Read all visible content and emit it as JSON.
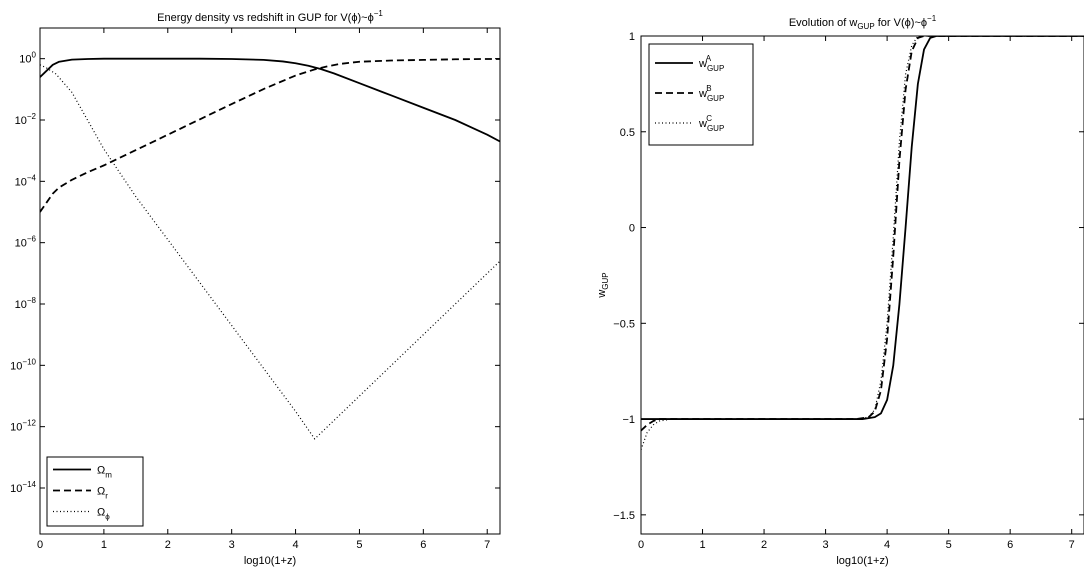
{
  "chart_data": [
    {
      "type": "line",
      "title": "Energy density vs redshift in GUP for V(ϕ)~ϕ",
      "title_exponent": "−1",
      "xlabel": "log10(1+z)",
      "ylabel": "",
      "xlim": [
        0,
        7.2
      ],
      "ylim_log10": [
        -15.5,
        1.0
      ],
      "yscale": "log",
      "grid": false,
      "legend_position": "bottom-left",
      "xticks": [
        0,
        1,
        2,
        3,
        4,
        5,
        6,
        7
      ],
      "yticks_log10": [
        0,
        -2,
        -4,
        -6,
        -8,
        -10,
        -12,
        -14
      ],
      "ytick_base": "10",
      "ytick_exponents": [
        "0",
        "−2",
        "−4",
        "−6",
        "−8",
        "−10",
        "−12",
        "−14"
      ],
      "series": [
        {
          "name": "Ω",
          "subscript": "m",
          "style": "solid",
          "x": [
            0,
            0.1,
            0.2,
            0.3,
            0.5,
            0.75,
            1,
            1.5,
            2,
            2.5,
            3,
            3.5,
            3.8,
            4.0,
            4.2,
            4.4,
            4.6,
            5.0,
            5.5,
            6.0,
            6.5,
            7.0,
            7.2
          ],
          "y_log10": [
            -0.6,
            -0.4,
            -0.2,
            -0.1,
            -0.03,
            -0.01,
            0,
            0,
            0,
            0,
            -0.01,
            -0.04,
            -0.09,
            -0.15,
            -0.23,
            -0.34,
            -0.48,
            -0.8,
            -1.2,
            -1.6,
            -2.0,
            -2.48,
            -2.7
          ]
        },
        {
          "name": "Ω",
          "subscript": "r",
          "style": "dashed",
          "x": [
            0,
            0.1,
            0.2,
            0.3,
            0.5,
            0.75,
            1,
            1.5,
            2,
            2.5,
            3,
            3.5,
            4.0,
            4.3,
            4.5,
            4.7,
            5.0,
            5.5,
            6.0,
            6.5,
            7.0,
            7.2
          ],
          "y_log10": [
            -5.0,
            -4.7,
            -4.4,
            -4.2,
            -3.95,
            -3.7,
            -3.48,
            -2.98,
            -2.48,
            -1.98,
            -1.48,
            -0.99,
            -0.55,
            -0.35,
            -0.25,
            -0.17,
            -0.1,
            -0.06,
            -0.04,
            -0.02,
            -0.01,
            -0.01
          ]
        },
        {
          "name": "Ω",
          "subscript": "ϕ",
          "style": "dotted",
          "x": [
            0,
            0.1,
            0.25,
            0.5,
            1,
            1.5,
            2,
            2.5,
            3,
            3.5,
            4.0,
            4.3,
            4.5,
            5.0,
            5.5,
            6.0,
            6.5,
            7.0,
            7.2
          ],
          "y_log10": [
            -0.2,
            -0.3,
            -0.5,
            -1.1,
            -2.95,
            -4.5,
            -5.9,
            -7.3,
            -8.7,
            -10.1,
            -11.5,
            -12.4,
            -12.0,
            -11.0,
            -10.0,
            -9.0,
            -8.0,
            -7.0,
            -6.6
          ]
        }
      ]
    },
    {
      "type": "line",
      "title_prefix": "Evolution of w",
      "title_sub": "GUP",
      "title_suffix": " for V(ϕ)~ϕ",
      "title_exponent": "−1",
      "xlabel": "log10(1+z)",
      "ylabel": "w",
      "ylabel_sub": "GUP",
      "xlim": [
        0,
        7.2
      ],
      "ylim": [
        -1.6,
        1.0
      ],
      "grid": false,
      "legend_position": "top-left",
      "xticks": [
        0,
        1,
        2,
        3,
        4,
        5,
        6,
        7
      ],
      "yticks": [
        1,
        0.5,
        0,
        -0.5,
        -1,
        -1.5
      ],
      "ytick_labels": [
        "1",
        "0.5",
        "0",
        "−0.5",
        "−1",
        "−1.5"
      ],
      "series": [
        {
          "name": "w",
          "subscript": "GUP",
          "superscript": "A",
          "style": "solid",
          "x": [
            0,
            0.5,
            1,
            2,
            3,
            3.6,
            3.8,
            3.9,
            4.0,
            4.1,
            4.2,
            4.3,
            4.4,
            4.5,
            4.6,
            4.7,
            4.8,
            5,
            6,
            7,
            7.2
          ],
          "y": [
            -1.0,
            -1.0,
            -1.0,
            -1.0,
            -1.0,
            -1.0,
            -0.99,
            -0.97,
            -0.9,
            -0.72,
            -0.4,
            0.0,
            0.42,
            0.75,
            0.93,
            0.99,
            1.0,
            1.0,
            1.0,
            1.0,
            1.0
          ]
        },
        {
          "name": "w",
          "subscript": "GUP",
          "superscript": "B",
          "style": "dashed",
          "x": [
            0,
            0.1,
            0.2,
            0.3,
            0.5,
            1,
            2,
            3,
            3.5,
            3.7,
            3.8,
            3.9,
            4.0,
            4.1,
            4.2,
            4.3,
            4.4,
            4.5,
            4.6,
            4.7,
            5,
            6,
            7,
            7.2
          ],
          "y": [
            -1.06,
            -1.03,
            -1.01,
            -1.0,
            -1.0,
            -1.0,
            -1.0,
            -1.0,
            -1.0,
            -0.99,
            -0.96,
            -0.85,
            -0.58,
            -0.15,
            0.35,
            0.72,
            0.92,
            0.99,
            1.0,
            1.0,
            1.0,
            1.0,
            1.0,
            1.0
          ]
        },
        {
          "name": "w",
          "subscript": "GUP",
          "superscript": "C",
          "style": "dotted",
          "x": [
            0,
            0.1,
            0.2,
            0.3,
            0.5,
            1,
            2,
            3,
            3.5,
            3.7,
            3.8,
            3.9,
            4.0,
            4.1,
            4.2,
            4.3,
            4.4,
            4.5,
            4.6,
            4.7,
            5,
            6,
            7,
            7.2
          ],
          "y": [
            -1.16,
            -1.07,
            -1.03,
            -1.01,
            -1.0,
            -1.0,
            -1.0,
            -1.0,
            -1.0,
            -0.99,
            -0.95,
            -0.8,
            -0.5,
            -0.05,
            0.45,
            0.8,
            0.95,
            1.0,
            1.0,
            1.0,
            1.0,
            1.0,
            1.0,
            1.0
          ]
        }
      ]
    }
  ]
}
